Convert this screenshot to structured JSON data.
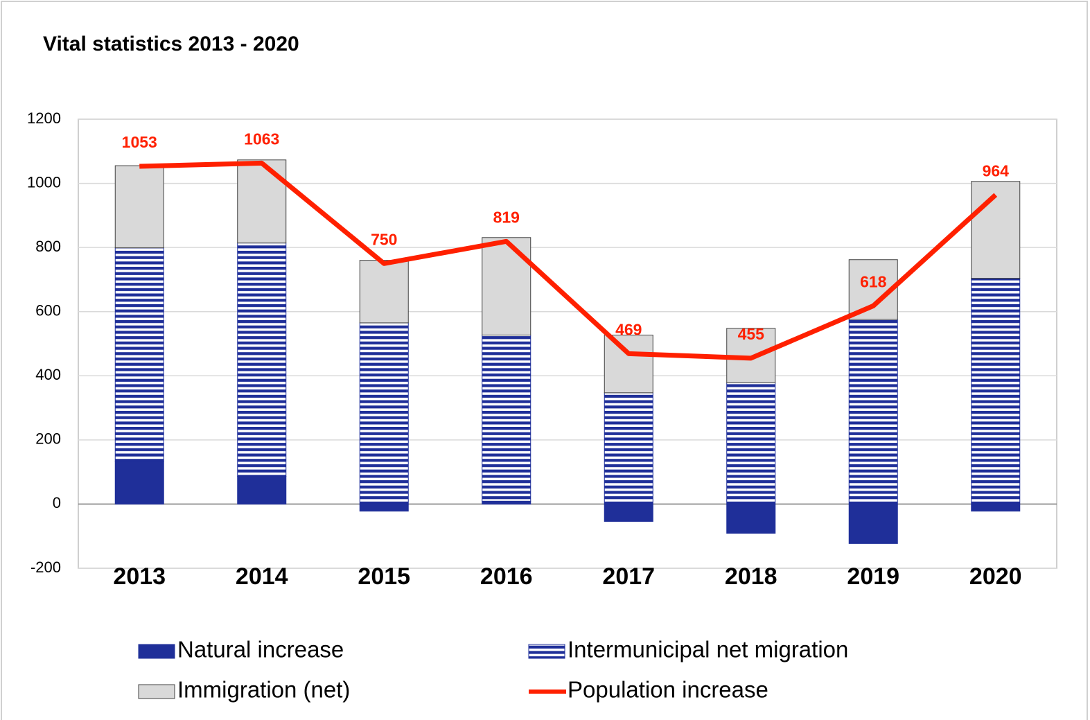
{
  "chart_data": {
    "type": "bar",
    "stacked": true,
    "title": "Vital statistics 2013 - 2020",
    "categories": [
      "2013",
      "2014",
      "2015",
      "2016",
      "2017",
      "2018",
      "2019",
      "2020"
    ],
    "series": [
      {
        "name": "Natural increase",
        "color": "#1f2f99",
        "values": [
          134,
          86,
          -22,
          9,
          -54,
          -91,
          -123,
          -22
        ]
      },
      {
        "name": "Intermunicipal net migration",
        "color": "#1f2f99",
        "fill": "stripes",
        "values": [
          665,
          728,
          565,
          518,
          347,
          378,
          576,
          704
        ]
      },
      {
        "name": "Immigration (net)",
        "color": "#d9d9d9",
        "values": [
          256,
          259,
          195,
          304,
          180,
          170,
          186,
          302
        ]
      },
      {
        "name": "Population increase",
        "type": "line",
        "color": "#ff2000",
        "values": [
          1053,
          1063,
          750,
          819,
          469,
          455,
          618,
          964
        ],
        "data_labels": true
      }
    ],
    "ylim": [
      -200,
      1200
    ],
    "yticks": [
      -200,
      0,
      200,
      400,
      600,
      800,
      1000,
      1200
    ],
    "grid": true,
    "legend": "bottom"
  }
}
